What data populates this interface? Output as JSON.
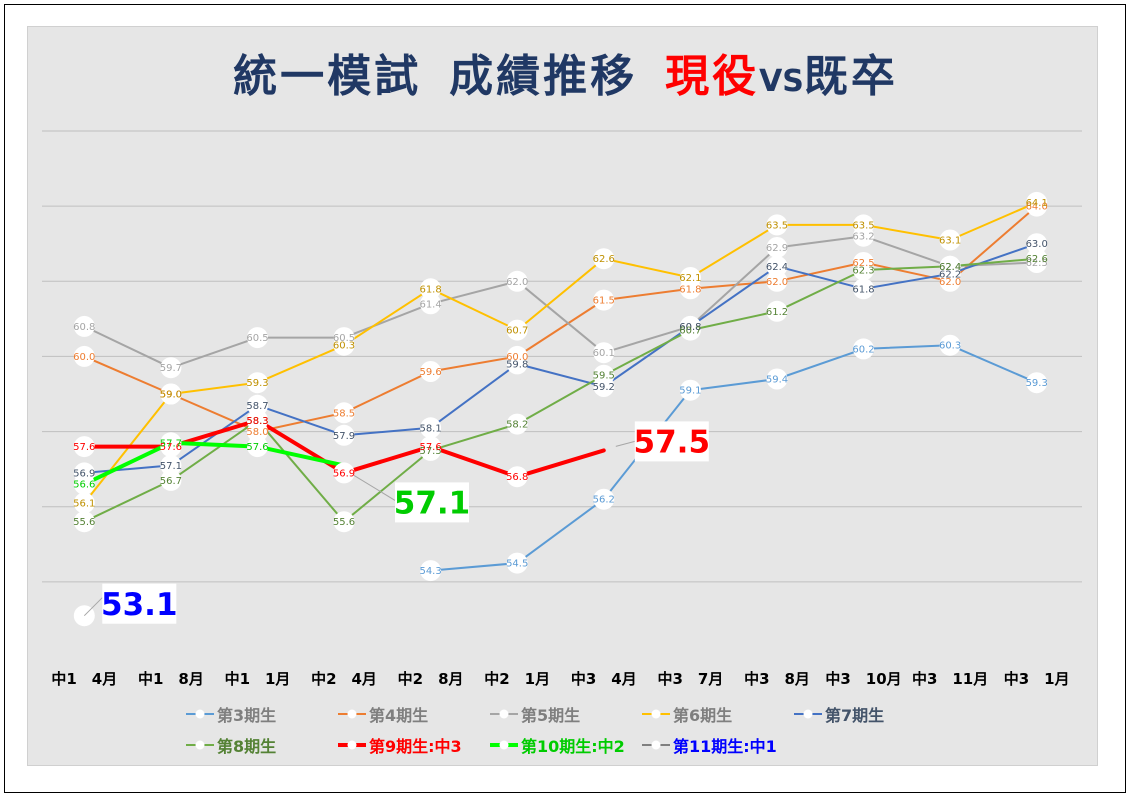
{
  "chart_data": {
    "type": "line",
    "title": {
      "part1": "統一模試",
      "part2": "成績推移",
      "part3": "現役",
      "part4": "VS",
      "part5": "既卒"
    },
    "title_color": "#203864",
    "title_accent_color": "#FF0000",
    "xlabel": "",
    "ylabel": "",
    "ylim": [
      52,
      66
    ],
    "grid": true,
    "legend_position": "bottom",
    "categories": [
      "中1　4月",
      "中1　8月",
      "中1　1月",
      "中2　4月",
      "中2　8月",
      "中2　1月",
      "中3　4月",
      "中3　7月",
      "中3　8月",
      "中3　10月",
      "中3　11月",
      "中3　1月"
    ],
    "series": [
      {
        "name": "第3期生",
        "color": "#5B9BD5",
        "label_color": "#5B9BD5",
        "legend_text_color": "#7F7F7F",
        "line": "normal",
        "values": [
          null,
          null,
          null,
          null,
          54.3,
          54.5,
          56.2,
          59.1,
          59.4,
          60.2,
          60.3,
          59.3
        ]
      },
      {
        "name": "第4期生",
        "color": "#ED7D31",
        "label_color": "#ED7D31",
        "legend_text_color": "#7F7F7F",
        "line": "normal",
        "values": [
          60.0,
          59.0,
          58.0,
          58.5,
          59.6,
          60.0,
          61.5,
          61.8,
          62.0,
          62.5,
          62.0,
          64.0
        ]
      },
      {
        "name": "第5期生",
        "color": "#A5A5A5",
        "label_color": "#A5A5A5",
        "legend_text_color": "#7F7F7F",
        "line": "normal",
        "values": [
          60.8,
          59.7,
          60.5,
          60.5,
          61.4,
          62.0,
          60.1,
          60.8,
          62.9,
          63.2,
          62.4,
          62.5
        ]
      },
      {
        "name": "第6期生",
        "color": "#FFC000",
        "label_color": "#BF9000",
        "legend_text_color": "#7F7F7F",
        "line": "normal",
        "values": [
          56.1,
          59.0,
          59.3,
          60.3,
          61.8,
          60.7,
          62.6,
          62.1,
          63.5,
          63.5,
          63.1,
          64.1
        ]
      },
      {
        "name": "第7期生",
        "color": "#4472C4",
        "label_color": "#44546A",
        "legend_text_color": "#44546A",
        "line": "normal",
        "values": [
          56.9,
          57.1,
          58.7,
          57.9,
          58.1,
          59.8,
          59.2,
          60.8,
          62.4,
          61.8,
          62.2,
          63.0
        ]
      },
      {
        "name": "第8期生",
        "color": "#70AD47",
        "label_color": "#548235",
        "legend_text_color": "#548235",
        "line": "normal",
        "values": [
          55.6,
          56.7,
          58.3,
          55.6,
          57.5,
          58.2,
          59.5,
          60.7,
          61.2,
          62.3,
          62.4,
          62.6
        ]
      },
      {
        "name": "第9期生:中3",
        "color": "#FF0000",
        "label_color": "#FF0000",
        "legend_text_color": "#FF0000",
        "line": "thick",
        "values": [
          57.6,
          57.6,
          58.3,
          56.9,
          57.6,
          56.8,
          57.5,
          null,
          null,
          null,
          null,
          null
        ]
      },
      {
        "name": "第10期生:中2",
        "color": "#00FF00",
        "label_color": "#00CC00",
        "legend_text_color": "#00CC00",
        "line": "thick",
        "values": [
          56.6,
          57.7,
          57.6,
          57.1,
          null,
          null,
          null,
          null,
          null,
          null,
          null,
          null
        ]
      },
      {
        "name": "第11期生:中1",
        "color": "#7F7F7F",
        "label_color": "#0000FF",
        "legend_text_color": "#0000FF",
        "line": "normal",
        "values": [
          53.1,
          null,
          null,
          null,
          null,
          null,
          null,
          null,
          null,
          null,
          null,
          null
        ]
      }
    ],
    "annotations": [
      {
        "text": "53.1",
        "series": "第11期生:中1",
        "category": "中1　4月",
        "color": "#0000FF"
      },
      {
        "text": "57.1",
        "series": "第10期生:中2",
        "category": "中2　4月",
        "color": "#00CC00"
      },
      {
        "text": "57.5",
        "series": "第9期生:中3",
        "category": "中3　4月",
        "color": "#FF0000"
      }
    ]
  }
}
